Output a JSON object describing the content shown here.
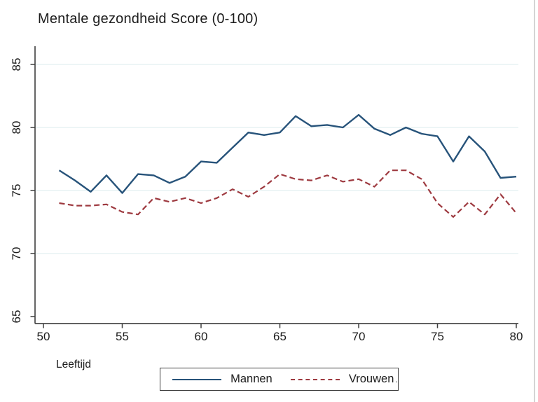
{
  "chart_data": {
    "type": "line",
    "title": "Mentale gezondheid Score (0-100)",
    "xlabel": "Leeftijd",
    "ylabel": "",
    "x": [
      51,
      52,
      53,
      54,
      55,
      56,
      57,
      58,
      59,
      60,
      61,
      62,
      63,
      64,
      65,
      66,
      67,
      68,
      69,
      70,
      71,
      72,
      73,
      74,
      75,
      76,
      77,
      78,
      79,
      80
    ],
    "series": [
      {
        "name": "Mannen",
        "style": "solid",
        "color": "#27537a",
        "values": [
          76.6,
          75.8,
          74.9,
          76.2,
          74.8,
          76.3,
          76.2,
          75.6,
          76.1,
          77.3,
          77.2,
          78.4,
          79.6,
          79.4,
          79.6,
          80.9,
          80.1,
          80.2,
          80.0,
          81.0,
          79.9,
          79.4,
          80.0,
          79.5,
          79.3,
          77.3,
          79.3,
          78.1,
          76.0,
          76.1
        ]
      },
      {
        "name": "Vrouwen",
        "style": "dashed",
        "color": "#9e3a40",
        "values": [
          74.0,
          73.8,
          73.8,
          73.9,
          73.3,
          73.1,
          74.4,
          74.1,
          74.4,
          74.0,
          74.4,
          75.1,
          74.5,
          75.3,
          76.3,
          75.9,
          75.8,
          76.2,
          75.7,
          75.9,
          75.3,
          76.6,
          76.6,
          75.9,
          74.0,
          72.9,
          74.1,
          73.1,
          74.7,
          73.2
        ]
      }
    ],
    "xlim": [
      50,
      80
    ],
    "ylim": [
      65,
      85
    ],
    "xticks": [
      50,
      55,
      60,
      65,
      70,
      75,
      80
    ],
    "yticks": [
      65,
      70,
      75,
      80,
      85
    ],
    "grid": "horizontal-on",
    "legend_position": "bottom-center",
    "gridline_color": "#e2eff1",
    "axis_color": "#4a4a4a",
    "tick_color": "#3f3f3f",
    "text_color": "#1c1c1c",
    "background_color": "#ffffff"
  },
  "legend": {
    "items": [
      {
        "label": "Mannen"
      },
      {
        "label": "Vrouwen"
      }
    ],
    "trailing_dot": "."
  }
}
